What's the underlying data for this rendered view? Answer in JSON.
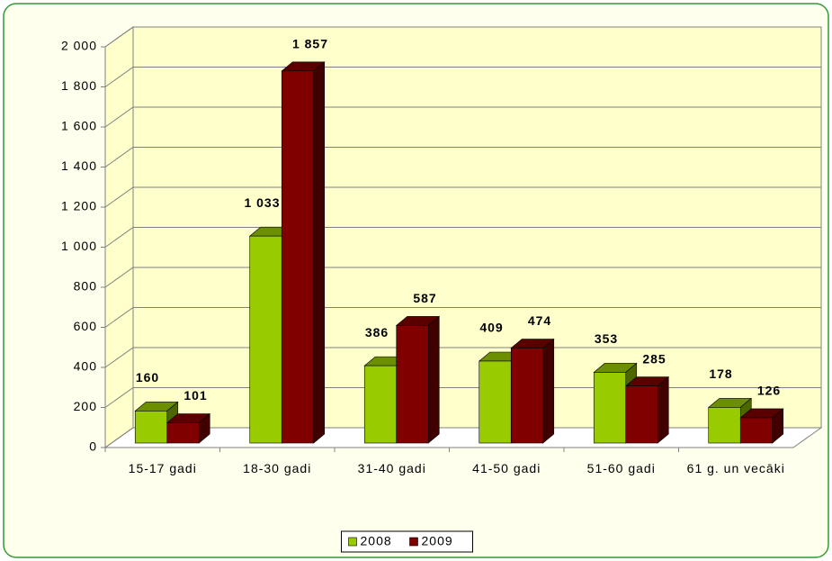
{
  "chart_data": {
    "type": "bar3d",
    "categories": [
      "15-17 gadi",
      "18-30 gadi",
      "31-40 gadi",
      "41-50 gadi",
      "51-60 gadi",
      "61 g. un vecāki"
    ],
    "series": [
      {
        "name": "2008",
        "color": "#99cc00",
        "values": [
          160,
          1033,
          386,
          409,
          353,
          178
        ],
        "value_labels": [
          "160",
          "1 033",
          "386",
          "409",
          "353",
          "178"
        ]
      },
      {
        "name": "2009",
        "color": "#800000",
        "values": [
          101,
          1857,
          587,
          474,
          285,
          126
        ],
        "value_labels": [
          "101",
          "1 857",
          "587",
          "474",
          "285",
          "126"
        ]
      }
    ],
    "ylim": [
      0,
      2000
    ],
    "yticks": [
      0,
      200,
      400,
      600,
      800,
      {
        "value": 1000,
        "label": "1 000"
      },
      {
        "value": 1200,
        "label": "1 200"
      },
      {
        "value": 1400,
        "label": "1 400"
      },
      {
        "value": 1600,
        "label": "1 600"
      },
      {
        "value": 1800,
        "label": "1 800"
      },
      {
        "value": 2000,
        "label": "2 000"
      }
    ],
    "grid": true,
    "legend": "bottom"
  }
}
